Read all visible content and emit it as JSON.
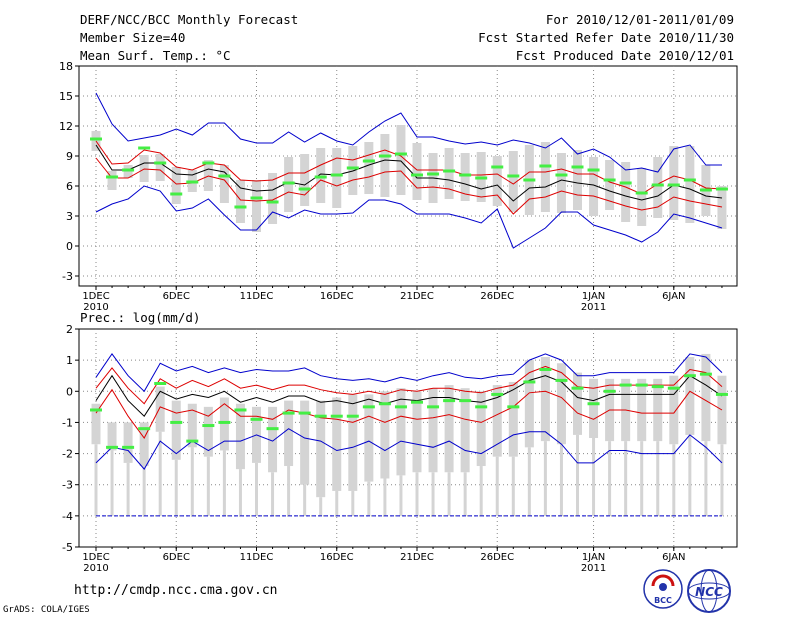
{
  "header": {
    "title": "DERF/NCC/BCC Monthly Forecast",
    "member_size": "Member Size=40",
    "variable": "Mean Surf. Temp.: °C",
    "period": "For 2010/12/01-2011/01/09",
    "fcst_started": "Fcst Started Refer Date 2010/11/30",
    "fcst_produced": "Fcst Produced Date 2010/12/01"
  },
  "footer": {
    "url": "http://cmdp.ncc.cma.gov.cn",
    "credit": "GrADS: COLA/IGES"
  },
  "logos": {
    "bcc_label": "BCC",
    "ncc_label": "NCC"
  },
  "colors": {
    "envelope": "#0000cc",
    "spread": "#dd0000",
    "mean": "#000000",
    "box": "#d4d4d4",
    "marker": "#44ee44",
    "grid": "#888888"
  },
  "chart_data": [
    {
      "type": "box",
      "title": "Mean Surf. Temp.: °C",
      "ylabel": "°C",
      "ylim": [
        -4,
        18
      ],
      "yticks": [
        -3,
        0,
        3,
        6,
        9,
        12,
        15,
        18
      ],
      "x_ticks": [
        {
          "day": 1,
          "label": "1DEC",
          "sub": "2010"
        },
        {
          "day": 6,
          "label": "6DEC",
          "sub": ""
        },
        {
          "day": 11,
          "label": "11DEC",
          "sub": ""
        },
        {
          "day": 16,
          "label": "16DEC",
          "sub": ""
        },
        {
          "day": 21,
          "label": "21DEC",
          "sub": ""
        },
        {
          "day": 26,
          "label": "26DEC",
          "sub": ""
        },
        {
          "day": 32,
          "label": "1JAN",
          "sub": "2011"
        },
        {
          "day": 37,
          "label": "6JAN",
          "sub": ""
        }
      ],
      "days": [
        1,
        2,
        3,
        4,
        5,
        6,
        7,
        8,
        9,
        10,
        11,
        12,
        13,
        14,
        15,
        16,
        17,
        18,
        19,
        20,
        21,
        22,
        23,
        24,
        25,
        26,
        27,
        28,
        29,
        30,
        31,
        32,
        33,
        34,
        35,
        36,
        37,
        38,
        39,
        40
      ],
      "series": [
        {
          "name": "max",
          "values": [
            15.3,
            12.2,
            10.5,
            10.8,
            11.1,
            11.7,
            11.1,
            12.3,
            12.3,
            10.7,
            10.3,
            10.3,
            11.4,
            10.4,
            11.3,
            10.5,
            10.1,
            11.4,
            12.5,
            13.3,
            10.9,
            10.9,
            10.5,
            10.2,
            10.4,
            10.1,
            10.6,
            10.3,
            9.8,
            10.8,
            9.2,
            9.7,
            8.9,
            7.6,
            7.8,
            7.4,
            9.7,
            10.1,
            8.1,
            8.1
          ]
        },
        {
          "name": "upper",
          "values": [
            10.5,
            8.2,
            8.3,
            9.6,
            9.3,
            7.9,
            7.6,
            8.3,
            8.1,
            6.6,
            6.5,
            6.6,
            7.3,
            7.3,
            8.1,
            8.8,
            8.6,
            9.1,
            9.6,
            9.0,
            7.6,
            7.6,
            7.6,
            7.1,
            7.1,
            7.2,
            6.2,
            7.4,
            7.4,
            7.7,
            7.2,
            7.2,
            6.4,
            5.9,
            5.2,
            6.2,
            7.0,
            6.6,
            5.8,
            5.7
          ]
        },
        {
          "name": "mean",
          "values": [
            10.1,
            7.6,
            7.6,
            8.3,
            8.3,
            7.2,
            7.1,
            7.7,
            7.4,
            5.8,
            5.5,
            5.6,
            6.4,
            6.1,
            7.2,
            7.1,
            7.5,
            8.1,
            8.6,
            8.5,
            6.8,
            6.8,
            6.6,
            6.2,
            5.7,
            6.1,
            4.5,
            5.8,
            5.9,
            6.6,
            6.3,
            6.1,
            5.5,
            5.0,
            4.6,
            5.0,
            6.1,
            5.7,
            5.0,
            4.8
          ]
        },
        {
          "name": "lower",
          "values": [
            8.8,
            6.8,
            6.8,
            7.7,
            7.6,
            6.2,
            6.3,
            7.0,
            6.6,
            4.6,
            4.5,
            4.6,
            5.4,
            5.1,
            6.6,
            6.0,
            6.6,
            6.9,
            7.4,
            7.5,
            5.8,
            5.9,
            5.7,
            5.2,
            4.9,
            5.1,
            3.2,
            4.7,
            4.9,
            5.5,
            5.1,
            5.0,
            4.5,
            4.0,
            3.6,
            3.9,
            4.9,
            4.5,
            4.2,
            3.9
          ]
        },
        {
          "name": "min",
          "values": [
            3.4,
            4.2,
            4.7,
            6.0,
            5.5,
            3.5,
            3.8,
            4.7,
            3.1,
            1.6,
            1.6,
            3.4,
            2.8,
            3.6,
            3.2,
            3.2,
            3.3,
            4.6,
            4.6,
            4.2,
            3.2,
            3.2,
            3.2,
            2.8,
            2.3,
            3.7,
            -0.2,
            0.8,
            1.8,
            3.4,
            3.4,
            2.1,
            1.6,
            1.1,
            0.4,
            1.4,
            3.2,
            2.8,
            2.3,
            1.8
          ]
        }
      ],
      "boxes": [
        {
          "low": 9.5,
          "high": 11.5,
          "marker": 10.7
        },
        {
          "low": 5.6,
          "high": 7.5,
          "marker": 6.9
        },
        {
          "low": 6.8,
          "high": 8.1,
          "marker": 7.6
        },
        {
          "low": 6.4,
          "high": 9.1,
          "marker": 9.8
        },
        {
          "low": 6.5,
          "high": 9.2,
          "marker": 8.3
        },
        {
          "low": 4.2,
          "high": 7.9,
          "marker": 5.2
        },
        {
          "low": 5.4,
          "high": 7.6,
          "marker": 6.4
        },
        {
          "low": 5.5,
          "high": 8.6,
          "marker": 8.3
        },
        {
          "low": 4.3,
          "high": 8.1,
          "marker": 7.0
        },
        {
          "low": 2.3,
          "high": 6.6,
          "marker": 3.9
        },
        {
          "low": 1.4,
          "high": 6.6,
          "marker": 4.8
        },
        {
          "low": 2.2,
          "high": 7.3,
          "marker": 4.4
        },
        {
          "low": 3.4,
          "high": 8.9,
          "marker": 6.3
        },
        {
          "low": 4.0,
          "high": 9.2,
          "marker": 5.7
        },
        {
          "low": 4.3,
          "high": 9.8,
          "marker": 6.9
        },
        {
          "low": 3.8,
          "high": 9.8,
          "marker": 7.1
        },
        {
          "low": 5.1,
          "high": 10.0,
          "marker": 7.8
        },
        {
          "low": 5.2,
          "high": 10.4,
          "marker": 8.5
        },
        {
          "low": 4.9,
          "high": 11.2,
          "marker": 9.0
        },
        {
          "low": 5.1,
          "high": 12.1,
          "marker": 9.2
        },
        {
          "low": 4.6,
          "high": 10.3,
          "marker": 7.1
        },
        {
          "low": 4.3,
          "high": 9.3,
          "marker": 7.2
        },
        {
          "low": 4.7,
          "high": 9.8,
          "marker": 7.5
        },
        {
          "low": 4.5,
          "high": 9.3,
          "marker": 7.1
        },
        {
          "low": 4.4,
          "high": 9.4,
          "marker": 6.8
        },
        {
          "low": 4.0,
          "high": 9.0,
          "marker": 7.9
        },
        {
          "low": 3.4,
          "high": 9.5,
          "marker": 7.0
        },
        {
          "low": 3.1,
          "high": 10.1,
          "marker": 6.6
        },
        {
          "low": 3.4,
          "high": 10.4,
          "marker": 8.0
        },
        {
          "low": 3.3,
          "high": 9.3,
          "marker": 7.1
        },
        {
          "low": 3.6,
          "high": 9.6,
          "marker": 7.9
        },
        {
          "low": 3.0,
          "high": 8.9,
          "marker": 7.6
        },
        {
          "low": 3.6,
          "high": 8.6,
          "marker": 6.6
        },
        {
          "low": 2.4,
          "high": 8.4,
          "marker": 6.3
        },
        {
          "low": 2.0,
          "high": 7.8,
          "marker": 5.3
        },
        {
          "low": 2.8,
          "high": 8.9,
          "marker": 6.1
        },
        {
          "low": 2.6,
          "high": 10.0,
          "marker": 6.1
        },
        {
          "low": 2.3,
          "high": 10.0,
          "marker": 6.6
        },
        {
          "low": 3.0,
          "high": 8.1,
          "marker": 5.6
        },
        {
          "low": 1.7,
          "high": 6.0,
          "marker": 5.7
        }
      ]
    },
    {
      "type": "box",
      "title": "Prec.: log(mm/d)",
      "ylabel": "log(mm/d)",
      "ylim": [
        -5,
        2
      ],
      "yticks": [
        -5,
        -4,
        -3,
        -2,
        -1,
        0,
        1,
        2
      ],
      "baseline": -4,
      "x_ticks": [
        {
          "day": 1,
          "label": "1DEC",
          "sub": "2010"
        },
        {
          "day": 6,
          "label": "6DEC",
          "sub": ""
        },
        {
          "day": 11,
          "label": "11DEC",
          "sub": ""
        },
        {
          "day": 16,
          "label": "16DEC",
          "sub": ""
        },
        {
          "day": 21,
          "label": "21DEC",
          "sub": ""
        },
        {
          "day": 26,
          "label": "26DEC",
          "sub": ""
        },
        {
          "day": 32,
          "label": "1JAN",
          "sub": "2011"
        },
        {
          "day": 37,
          "label": "6JAN",
          "sub": ""
        }
      ],
      "days": [
        1,
        2,
        3,
        4,
        5,
        6,
        7,
        8,
        9,
        10,
        11,
        12,
        13,
        14,
        15,
        16,
        17,
        18,
        19,
        20,
        21,
        22,
        23,
        24,
        25,
        26,
        27,
        28,
        29,
        30,
        31,
        32,
        33,
        34,
        35,
        36,
        37,
        38,
        39,
        40
      ],
      "series": [
        {
          "name": "max",
          "values": [
            0.45,
            1.2,
            0.5,
            0.0,
            0.9,
            0.65,
            0.8,
            0.6,
            0.75,
            0.6,
            0.7,
            0.65,
            0.65,
            0.75,
            0.5,
            0.4,
            0.35,
            0.4,
            0.3,
            0.45,
            0.35,
            0.5,
            0.6,
            0.45,
            0.4,
            0.5,
            0.55,
            1.0,
            1.2,
            1.0,
            0.5,
            0.5,
            0.6,
            0.6,
            0.6,
            0.6,
            0.6,
            1.2,
            1.1,
            0.6
          ]
        },
        {
          "name": "upper",
          "values": [
            0.1,
            0.75,
            0.1,
            -0.4,
            0.4,
            0.1,
            0.35,
            0.15,
            0.4,
            0.1,
            0.2,
            0.05,
            0.2,
            0.2,
            0.05,
            -0.05,
            -0.1,
            0.0,
            -0.1,
            0.05,
            0.0,
            0.1,
            0.1,
            0.0,
            -0.05,
            0.1,
            0.2,
            0.6,
            0.8,
            0.6,
            0.15,
            0.1,
            0.2,
            0.2,
            0.2,
            0.2,
            0.2,
            0.7,
            0.6,
            0.15
          ]
        },
        {
          "name": "mean",
          "values": [
            -0.3,
            0.5,
            -0.3,
            -0.8,
            0.0,
            -0.25,
            -0.1,
            -0.2,
            0.0,
            -0.35,
            -0.2,
            -0.35,
            -0.15,
            -0.15,
            -0.35,
            -0.3,
            -0.4,
            -0.25,
            -0.4,
            -0.25,
            -0.3,
            -0.2,
            -0.2,
            -0.3,
            -0.35,
            -0.2,
            0.05,
            0.35,
            0.5,
            0.3,
            -0.2,
            -0.3,
            -0.1,
            -0.1,
            -0.1,
            -0.1,
            -0.1,
            0.5,
            0.2,
            -0.15
          ]
        },
        {
          "name": "lower",
          "values": [
            -0.7,
            0.05,
            -0.8,
            -1.5,
            -0.5,
            -0.7,
            -0.6,
            -0.8,
            -0.4,
            -0.8,
            -0.8,
            -0.9,
            -0.6,
            -0.7,
            -0.85,
            -0.9,
            -1.0,
            -0.8,
            -1.0,
            -0.8,
            -0.9,
            -0.85,
            -0.75,
            -0.9,
            -1.0,
            -0.75,
            -0.5,
            -0.05,
            0.0,
            -0.2,
            -0.7,
            -0.9,
            -0.6,
            -0.6,
            -0.7,
            -0.7,
            -0.7,
            0.0,
            -0.3,
            -0.6
          ]
        },
        {
          "name": "min",
          "values": [
            -2.3,
            -1.8,
            -1.9,
            -2.5,
            -1.6,
            -2.0,
            -1.6,
            -1.9,
            -1.6,
            -1.6,
            -1.4,
            -1.6,
            -1.2,
            -1.5,
            -1.6,
            -1.9,
            -1.8,
            -1.6,
            -1.9,
            -1.6,
            -1.7,
            -1.8,
            -1.6,
            -1.9,
            -2.0,
            -1.7,
            -1.4,
            -1.3,
            -1.3,
            -1.7,
            -2.3,
            -2.3,
            -1.9,
            -1.9,
            -2.0,
            -2.0,
            -2.0,
            -1.4,
            -1.8,
            -2.3
          ]
        }
      ],
      "boxes": [
        {
          "low": -1.7,
          "high": -0.4,
          "marker": -0.6
        },
        {
          "low": -1.9,
          "high": -1.0,
          "marker": -1.8
        },
        {
          "low": -2.3,
          "high": -1.0,
          "marker": -1.8
        },
        {
          "low": -2.4,
          "high": -1.0,
          "marker": -1.2
        },
        {
          "low": -1.3,
          "high": 0.15,
          "marker": 0.25
        },
        {
          "low": -2.2,
          "high": -0.3,
          "marker": -1.0
        },
        {
          "low": -1.8,
          "high": -0.4,
          "marker": -1.6
        },
        {
          "low": -2.1,
          "high": -0.5,
          "marker": -1.1
        },
        {
          "low": -1.9,
          "high": -0.2,
          "marker": -1.0
        },
        {
          "low": -2.5,
          "high": -0.4,
          "marker": -0.6
        },
        {
          "low": -2.3,
          "high": -0.5,
          "marker": -0.9
        },
        {
          "low": -2.6,
          "high": -0.5,
          "marker": -1.2
        },
        {
          "low": -2.4,
          "high": -0.3,
          "marker": -0.7
        },
        {
          "low": -3.0,
          "high": -0.3,
          "marker": -0.7
        },
        {
          "low": -3.4,
          "high": -0.3,
          "marker": -0.8
        },
        {
          "low": -3.2,
          "high": -0.2,
          "marker": -0.8
        },
        {
          "low": -3.2,
          "high": -0.1,
          "marker": -0.8
        },
        {
          "low": -2.9,
          "high": -0.1,
          "marker": -0.5
        },
        {
          "low": -2.8,
          "high": 0.0,
          "marker": -0.4
        },
        {
          "low": -2.7,
          "high": 0.1,
          "marker": -0.5
        },
        {
          "low": -2.6,
          "high": 0.0,
          "marker": -0.35
        },
        {
          "low": -2.6,
          "high": 0.1,
          "marker": -0.5
        },
        {
          "low": -2.6,
          "high": 0.2,
          "marker": -0.3
        },
        {
          "low": -2.6,
          "high": 0.1,
          "marker": -0.3
        },
        {
          "low": -2.4,
          "high": 0.0,
          "marker": -0.5
        },
        {
          "low": -2.1,
          "high": 0.2,
          "marker": -0.1
        },
        {
          "low": -2.1,
          "high": 0.3,
          "marker": -0.5
        },
        {
          "low": -1.8,
          "high": 1.0,
          "marker": 0.3
        },
        {
          "low": -1.6,
          "high": 1.1,
          "marker": 0.7
        },
        {
          "low": -1.7,
          "high": 0.9,
          "marker": 0.35
        },
        {
          "low": -1.4,
          "high": 0.6,
          "marker": 0.1
        },
        {
          "low": -1.5,
          "high": 0.4,
          "marker": -0.4
        },
        {
          "low": -1.6,
          "high": 0.4,
          "marker": 0.0
        },
        {
          "low": -1.6,
          "high": 0.4,
          "marker": 0.2
        },
        {
          "low": -1.6,
          "high": 0.4,
          "marker": 0.2
        },
        {
          "low": -1.6,
          "high": 0.4,
          "marker": 0.15
        },
        {
          "low": -1.7,
          "high": 0.5,
          "marker": 0.1
        },
        {
          "low": -1.4,
          "high": 1.1,
          "marker": 0.5
        },
        {
          "low": -1.6,
          "high": 1.2,
          "marker": 0.55
        },
        {
          "low": -1.7,
          "high": 0.5,
          "marker": -0.1
        }
      ]
    }
  ]
}
